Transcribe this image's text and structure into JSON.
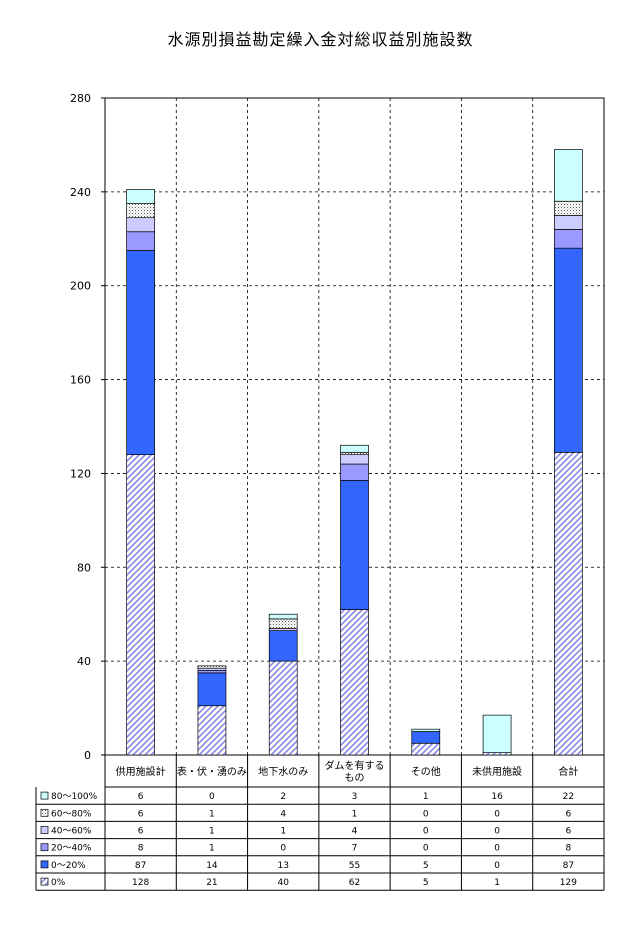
{
  "chart_data": {
    "type": "bar",
    "stacked": true,
    "title": "水源別損益勘定繰入金対総収益別施設数",
    "categories": [
      "供用施設計",
      "表・伏・湧のみ",
      "地下水のみ",
      "ダムを有するもの",
      "その他",
      "未供用施設",
      "合計"
    ],
    "category_lines": [
      [
        "供用施設計"
      ],
      [
        "表・伏・湧のみ"
      ],
      [
        "地下水のみ"
      ],
      [
        "ダムを有する",
        "もの"
      ],
      [
        "その他"
      ],
      [
        "未供用施設"
      ],
      [
        "合計"
      ]
    ],
    "ylim": [
      0,
      280
    ],
    "yticks": [
      0,
      40,
      80,
      120,
      160,
      200,
      240,
      280
    ],
    "grid": true,
    "series": [
      {
        "name": "0%",
        "values": [
          128,
          21,
          40,
          62,
          5,
          1,
          129
        ],
        "fill": "hatch",
        "color": "#9999ee"
      },
      {
        "name": "0～20%",
        "values": [
          87,
          14,
          13,
          55,
          5,
          0,
          87
        ],
        "color": "#3366ff"
      },
      {
        "name": "20～40%",
        "values": [
          8,
          1,
          0,
          7,
          0,
          0,
          8
        ],
        "color": "#9999ff"
      },
      {
        "name": "40～60%",
        "values": [
          6,
          1,
          1,
          4,
          0,
          0,
          6
        ],
        "color": "#ccccff"
      },
      {
        "name": "60～80%",
        "values": [
          6,
          1,
          4,
          1,
          0,
          0,
          6
        ],
        "fill": "dots",
        "color": "#aaaaaa"
      },
      {
        "name": "80～100%",
        "values": [
          6,
          0,
          2,
          3,
          1,
          16,
          22
        ],
        "color": "#ccffff"
      }
    ]
  }
}
